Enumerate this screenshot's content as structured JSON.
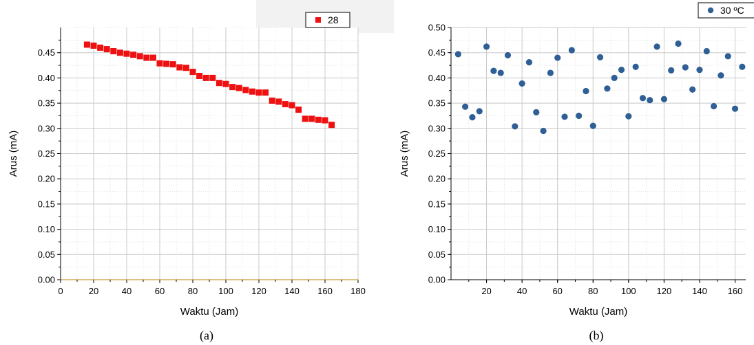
{
  "chart_data": [
    {
      "type": "scatter",
      "panel_label": "(a)",
      "xlabel": "Waktu (Jam)",
      "ylabel": "Arus (mA)",
      "xlim": [
        0,
        180
      ],
      "ylim": [
        0,
        0.5
      ],
      "xticks": [
        0,
        20,
        40,
        60,
        80,
        100,
        120,
        140,
        160,
        180
      ],
      "yticks": [
        0.0,
        0.05,
        0.1,
        0.15,
        0.2,
        0.25,
        0.3,
        0.35,
        0.4,
        0.45
      ],
      "grid": true,
      "legend_position": "top-right",
      "marker": "square",
      "color": "#ee1111",
      "series": [
        {
          "name": "28",
          "x": [
            16,
            20,
            24,
            28,
            32,
            36,
            40,
            44,
            48,
            52,
            56,
            60,
            64,
            68,
            72,
            76,
            80,
            84,
            88,
            92,
            96,
            100,
            104,
            108,
            112,
            116,
            120,
            124,
            128,
            132,
            136,
            140,
            144,
            148,
            152,
            156,
            160,
            164
          ],
          "y": [
            0.466,
            0.464,
            0.46,
            0.457,
            0.453,
            0.45,
            0.448,
            0.446,
            0.443,
            0.44,
            0.44,
            0.429,
            0.428,
            0.427,
            0.421,
            0.42,
            0.412,
            0.404,
            0.4,
            0.4,
            0.39,
            0.388,
            0.382,
            0.38,
            0.376,
            0.373,
            0.371,
            0.371,
            0.355,
            0.353,
            0.348,
            0.346,
            0.337,
            0.319,
            0.319,
            0.317,
            0.316,
            0.307
          ]
        }
      ]
    },
    {
      "type": "scatter",
      "panel_label": "(b)",
      "xlabel": "Waktu (Jam)",
      "ylabel": "Arus (mA)",
      "xlim": [
        0,
        166
      ],
      "ylim": [
        0,
        0.5
      ],
      "xticks": [
        20,
        40,
        60,
        80,
        100,
        120,
        140,
        160
      ],
      "yticks": [
        0.0,
        0.05,
        0.1,
        0.15,
        0.2,
        0.25,
        0.3,
        0.35,
        0.4,
        0.45,
        0.5
      ],
      "grid": true,
      "legend_position": "top-right",
      "marker": "circle",
      "color": "#2f5f95",
      "series": [
        {
          "name": "30 ºC",
          "x": [
            4,
            8,
            12,
            16,
            20,
            24,
            28,
            32,
            36,
            40,
            44,
            48,
            52,
            56,
            60,
            64,
            68,
            72,
            76,
            80,
            84,
            88,
            92,
            96,
            100,
            104,
            108,
            112,
            116,
            120,
            124,
            128,
            132,
            136,
            140,
            144,
            148,
            152,
            156,
            160,
            164
          ],
          "y": [
            0.447,
            0.343,
            0.322,
            0.334,
            0.462,
            0.414,
            0.41,
            0.445,
            0.304,
            0.389,
            0.431,
            0.332,
            0.295,
            0.41,
            0.44,
            0.323,
            0.455,
            0.325,
            0.374,
            0.305,
            0.441,
            0.379,
            0.4,
            0.416,
            0.324,
            0.422,
            0.36,
            0.356,
            0.462,
            0.358,
            0.415,
            0.468,
            0.421,
            0.377,
            0.416,
            0.453,
            0.344,
            0.405,
            0.443,
            0.339,
            0.422
          ]
        }
      ]
    }
  ]
}
